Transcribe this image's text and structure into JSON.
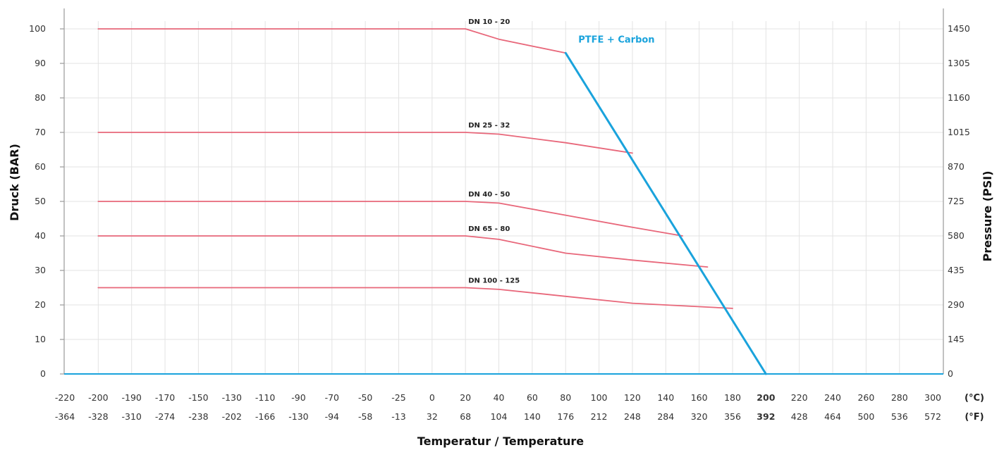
{
  "chart_data": {
    "type": "line",
    "ylabel_left": "Druck (BAR)",
    "ylabel_right": "Pressure (PSI)",
    "xlabel": "Temperatur / Temperature",
    "unit_c": "(°C)",
    "unit_f": "(°F)",
    "ylim": [
      0,
      100
    ],
    "y_ticks_left": [
      "0",
      "10",
      "20",
      "30",
      "40",
      "50",
      "60",
      "70",
      "80",
      "90",
      "100"
    ],
    "y_ticks_right": [
      "0",
      "145",
      "290",
      "435",
      "580",
      "725",
      "870",
      "1015",
      "1160",
      "1305",
      "1450"
    ],
    "x_ticks_c": [
      "-220",
      "-200",
      "-190",
      "-170",
      "-150",
      "-130",
      "-110",
      "-90",
      "-70",
      "-50",
      "-25",
      "0",
      "20",
      "40",
      "60",
      "80",
      "100",
      "120",
      "140",
      "160",
      "180",
      "200",
      "220",
      "240",
      "260",
      "280",
      "300"
    ],
    "x_ticks_f": [
      "-364",
      "-328",
      "-310",
      "-274",
      "-238",
      "-202",
      "-166",
      "-130",
      "-94",
      "-58",
      "-13",
      "32",
      "68",
      "104",
      "140",
      "176",
      "212",
      "248",
      "284",
      "320",
      "356",
      "392",
      "428",
      "464",
      "500",
      "536",
      "572"
    ],
    "highlight_tick": "200",
    "highlight_color": "#1aa3dc",
    "curve_color": "#e8677a",
    "grid": true,
    "series": [
      {
        "name": "DN 10 - 20",
        "points": [
          [
            "-200",
            100
          ],
          [
            "20",
            100
          ],
          [
            "40",
            97
          ],
          [
            "80",
            93
          ]
        ]
      },
      {
        "name": "DN 25 - 32",
        "points": [
          [
            "-200",
            70
          ],
          [
            "20",
            70
          ],
          [
            "40",
            69.5
          ],
          [
            "80",
            67
          ],
          [
            "120",
            64
          ]
        ]
      },
      {
        "name": "DN 40 - 50",
        "points": [
          [
            "-200",
            50
          ],
          [
            "20",
            50
          ],
          [
            "40",
            49.5
          ],
          [
            "80",
            46
          ],
          [
            "120",
            42.5
          ],
          [
            "150",
            40
          ]
        ]
      },
      {
        "name": "DN 65 - 80",
        "points": [
          [
            "-200",
            40
          ],
          [
            "20",
            40
          ],
          [
            "40",
            39
          ],
          [
            "80",
            35
          ],
          [
            "120",
            33
          ],
          [
            "165",
            31
          ]
        ]
      },
      {
        "name": "DN 100 - 125",
        "points": [
          [
            "-200",
            25
          ],
          [
            "20",
            25
          ],
          [
            "40",
            24.5
          ],
          [
            "80",
            22.5
          ],
          [
            "120",
            20.5
          ],
          [
            "180",
            19
          ]
        ]
      },
      {
        "name": "PTFE + Carbon",
        "color": "#1aa3dc",
        "points": [
          [
            "80",
            93
          ],
          [
            "200",
            0
          ]
        ]
      }
    ]
  }
}
